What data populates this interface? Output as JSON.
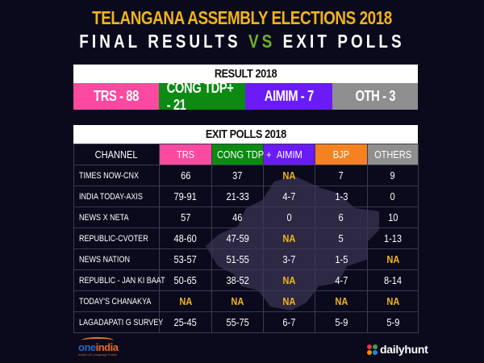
{
  "title": {
    "line1": "TELANGANA ASSEMBLY ELECTIONS 2018",
    "line2_a": "FINAL RESULTS ",
    "line2_vs": "VS",
    "line2_b": " EXIT POLLS"
  },
  "result": {
    "heading": "RESULT 2018",
    "cells": [
      {
        "label": "TRS - 88",
        "color": "#fb4aa0"
      },
      {
        "label": "CONG TDP+ - 21",
        "color": "#0c8a12"
      },
      {
        "label": "AIMIM - 7",
        "color": "#6a1bf7"
      },
      {
        "label": "OTH - 3",
        "color": "#8f8f8f"
      }
    ]
  },
  "exit_polls": {
    "heading": "EXIT POLLS 2018",
    "columns": [
      {
        "label": "CHANNEL",
        "color": "#0a0a1c"
      },
      {
        "label": "TRS",
        "color": "#fb4aa0"
      },
      {
        "label": "CONG TDP +",
        "color": "#0c8a12"
      },
      {
        "label": "AIMIM",
        "color": "#6a1bf7"
      },
      {
        "label": "BJP",
        "color": "#f58220"
      },
      {
        "label": "OTHERS",
        "color": "#8f8f8f"
      }
    ],
    "rows": [
      [
        "TIMES NOW-CNX",
        "66",
        "37",
        "NA",
        "7",
        "9"
      ],
      [
        "INDIA TODAY-AXIS",
        "79-91",
        "21-33",
        "4-7",
        "1-3",
        "0"
      ],
      [
        "NEWS X NETA",
        "57",
        "46",
        "0",
        "6",
        "10"
      ],
      [
        "REPUBLIC-CVOTER",
        "48-60",
        "47-59",
        "NA",
        "5",
        "1-13"
      ],
      [
        "NEWS NATION",
        "53-57",
        "51-55",
        "3-7",
        "1-5",
        "NA"
      ],
      [
        "REPUBLIC - JAN KI BAAT",
        "50-65",
        "38-52",
        "NA",
        "4-7",
        "8-14"
      ],
      [
        "TODAY'S CHANAKYA",
        "NA",
        "NA",
        "NA",
        "NA",
        "NA"
      ],
      [
        "LAGADAPATI G SURVEY",
        "25-45",
        "55-75",
        "6-7",
        "5-9",
        "5-9"
      ]
    ]
  },
  "footer": {
    "left_logo": {
      "word_a": "one",
      "word_b": "india",
      "tagline": "India's #1 Language Portal"
    },
    "right_logo": {
      "word": "dailyhunt"
    }
  },
  "colors": {
    "background": "#0a0a1c",
    "title_yellow": "#f2b31b",
    "vs_green": "#6fb22a",
    "na_yellow": "#f2b31b",
    "grid": "#3a3a52"
  }
}
